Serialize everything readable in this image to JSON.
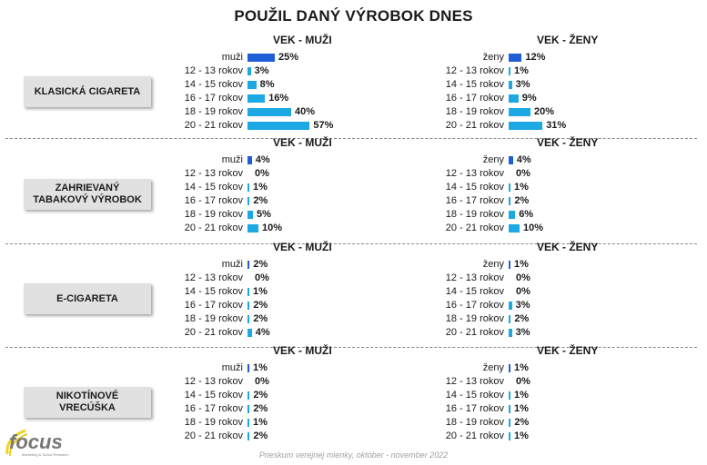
{
  "title": "POUŽIL DANÝ VÝROBOK DNES",
  "footer": "Prieskum verejnej mienky, október - november 2022",
  "logo": {
    "text": "focus",
    "sub": "Marketing & Social Research"
  },
  "colors": {
    "total": "#1f5fd6",
    "age": "#1ba8e3"
  },
  "groups": {
    "men_title": "VEK - MUŽI",
    "women_title": "VEK - ŽENY"
  },
  "row_labels": {
    "men": "muži",
    "women": "ženy",
    "ages": [
      "12 - 13 rokov",
      "14 - 15 rokov",
      "16 - 17 rokov",
      "18 - 19 rokov",
      "20 - 21 rokov"
    ]
  },
  "chart_data": [
    {
      "type": "bar",
      "section": "KLASICKÁ CIGARETA",
      "men": {
        "total": 25,
        "ages": [
          3,
          8,
          16,
          40,
          57
        ]
      },
      "women": {
        "total": 12,
        "ages": [
          1,
          3,
          9,
          20,
          31
        ]
      }
    },
    {
      "type": "bar",
      "section": "ZAHRIEVANÝ\nTABAKOVÝ VÝROBOK",
      "men": {
        "total": 4,
        "ages": [
          0,
          1,
          2,
          5,
          10
        ]
      },
      "women": {
        "total": 4,
        "ages": [
          0,
          1,
          2,
          6,
          10
        ]
      }
    },
    {
      "type": "bar",
      "section": "E-CIGARETA",
      "men": {
        "total": 2,
        "ages": [
          0,
          1,
          2,
          2,
          4
        ]
      },
      "women": {
        "total": 1,
        "ages": [
          0,
          0,
          3,
          2,
          3
        ]
      }
    },
    {
      "type": "bar",
      "section": "NIKOTÍNOVÉ\nVRECÚŠKA",
      "men": {
        "total": 1,
        "ages": [
          0,
          2,
          2,
          1,
          2
        ]
      },
      "women": {
        "total": 1,
        "ages": [
          0,
          1,
          1,
          2,
          1
        ]
      }
    }
  ]
}
